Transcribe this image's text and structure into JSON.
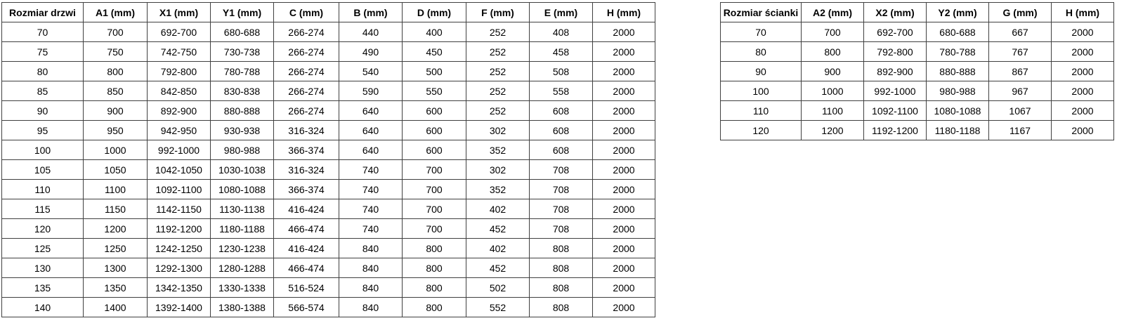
{
  "page": {
    "background_color": "#ffffff",
    "border_color": "#404040",
    "text_color": "#000000"
  },
  "tables": {
    "door": {
      "title": "Rozmiar drzwi",
      "headers": [
        "Rozmiar drzwi",
        "A1 (mm)",
        "X1 (mm)",
        "Y1 (mm)",
        "C (mm)",
        "B (mm)",
        "D (mm)",
        "F (mm)",
        "E (mm)",
        "H (mm)"
      ],
      "rows": [
        [
          "70",
          "700",
          "692-700",
          "680-688",
          "266-274",
          "440",
          "400",
          "252",
          "408",
          "2000"
        ],
        [
          "75",
          "750",
          "742-750",
          "730-738",
          "266-274",
          "490",
          "450",
          "252",
          "458",
          "2000"
        ],
        [
          "80",
          "800",
          "792-800",
          "780-788",
          "266-274",
          "540",
          "500",
          "252",
          "508",
          "2000"
        ],
        [
          "85",
          "850",
          "842-850",
          "830-838",
          "266-274",
          "590",
          "550",
          "252",
          "558",
          "2000"
        ],
        [
          "90",
          "900",
          "892-900",
          "880-888",
          "266-274",
          "640",
          "600",
          "252",
          "608",
          "2000"
        ],
        [
          "95",
          "950",
          "942-950",
          "930-938",
          "316-324",
          "640",
          "600",
          "302",
          "608",
          "2000"
        ],
        [
          "100",
          "1000",
          "992-1000",
          "980-988",
          "366-374",
          "640",
          "600",
          "352",
          "608",
          "2000"
        ],
        [
          "105",
          "1050",
          "1042-1050",
          "1030-1038",
          "316-324",
          "740",
          "700",
          "302",
          "708",
          "2000"
        ],
        [
          "110",
          "1100",
          "1092-1100",
          "1080-1088",
          "366-374",
          "740",
          "700",
          "352",
          "708",
          "2000"
        ],
        [
          "115",
          "1150",
          "1142-1150",
          "1130-1138",
          "416-424",
          "740",
          "700",
          "402",
          "708",
          "2000"
        ],
        [
          "120",
          "1200",
          "1192-1200",
          "1180-1188",
          "466-474",
          "740",
          "700",
          "452",
          "708",
          "2000"
        ],
        [
          "125",
          "1250",
          "1242-1250",
          "1230-1238",
          "416-424",
          "840",
          "800",
          "402",
          "808",
          "2000"
        ],
        [
          "130",
          "1300",
          "1292-1300",
          "1280-1288",
          "466-474",
          "840",
          "800",
          "452",
          "808",
          "2000"
        ],
        [
          "135",
          "1350",
          "1342-1350",
          "1330-1338",
          "516-524",
          "840",
          "800",
          "502",
          "808",
          "2000"
        ],
        [
          "140",
          "1400",
          "1392-1400",
          "1380-1388",
          "566-574",
          "840",
          "800",
          "552",
          "808",
          "2000"
        ]
      ]
    },
    "wall": {
      "title": "Rozmiar ścianki",
      "headers": [
        "Rozmiar ścianki",
        "A2 (mm)",
        "X2 (mm)",
        "Y2 (mm)",
        "G (mm)",
        "H (mm)"
      ],
      "rows": [
        [
          "70",
          "700",
          "692-700",
          "680-688",
          "667",
          "2000"
        ],
        [
          "80",
          "800",
          "792-800",
          "780-788",
          "767",
          "2000"
        ],
        [
          "90",
          "900",
          "892-900",
          "880-888",
          "867",
          "2000"
        ],
        [
          "100",
          "1000",
          "992-1000",
          "980-988",
          "967",
          "2000"
        ],
        [
          "110",
          "1100",
          "1092-1100",
          "1080-1088",
          "1067",
          "2000"
        ],
        [
          "120",
          "1200",
          "1192-1200",
          "1180-1188",
          "1167",
          "2000"
        ]
      ]
    }
  }
}
